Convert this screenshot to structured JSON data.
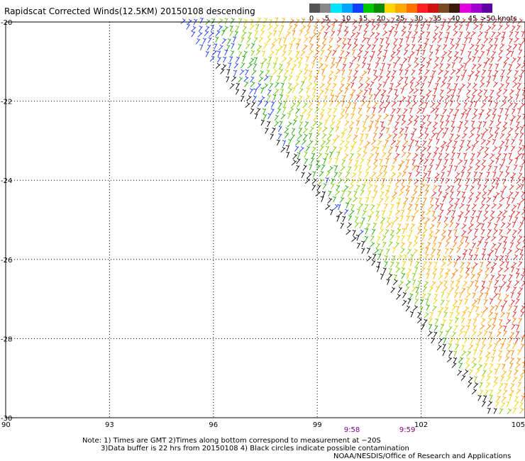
{
  "title": "Rapidscat Corrected Winds(12.5KM) 20150108 descending",
  "legend": {
    "colors": [
      "#555555",
      "#888888",
      "#00e5ff",
      "#00a5ff",
      "#1040ff",
      "#00c800",
      "#0a8c00",
      "#ffd400",
      "#ffa800",
      "#ff7000",
      "#ff2020",
      "#d01010",
      "#7a4a20",
      "#3a1a0a",
      "#e000e0",
      "#a000d0",
      "#6000a0"
    ],
    "labels": [
      "0",
      "5",
      "10",
      "15",
      "20",
      "25",
      "30",
      "35",
      "40",
      "45",
      ">50 knots"
    ]
  },
  "axes": {
    "x_ticks": [
      "90",
      "93",
      "96",
      "99",
      "102",
      "105"
    ],
    "y_ticks": [
      "-20",
      "-22",
      "-24",
      "-26",
      "-28",
      "-30"
    ]
  },
  "time_labels": [
    "9:58",
    "9:59"
  ],
  "notes": {
    "line1": "Note: 1) Times are GMT 2)Times along bottom correspond to measurement at −20S",
    "line2": "3)Data buffer is 22 hrs from 20150108 4) Black circles indicate possible contamination",
    "line3": "NOAA/NESDIS/Office of Research and Applications"
  },
  "map": {
    "lon_range": [
      90,
      105
    ],
    "lat_range": [
      -30,
      -20
    ],
    "swath_edge": [
      [
        95.0,
        -20.0
      ],
      [
        104.0,
        -30.0
      ]
    ]
  }
}
